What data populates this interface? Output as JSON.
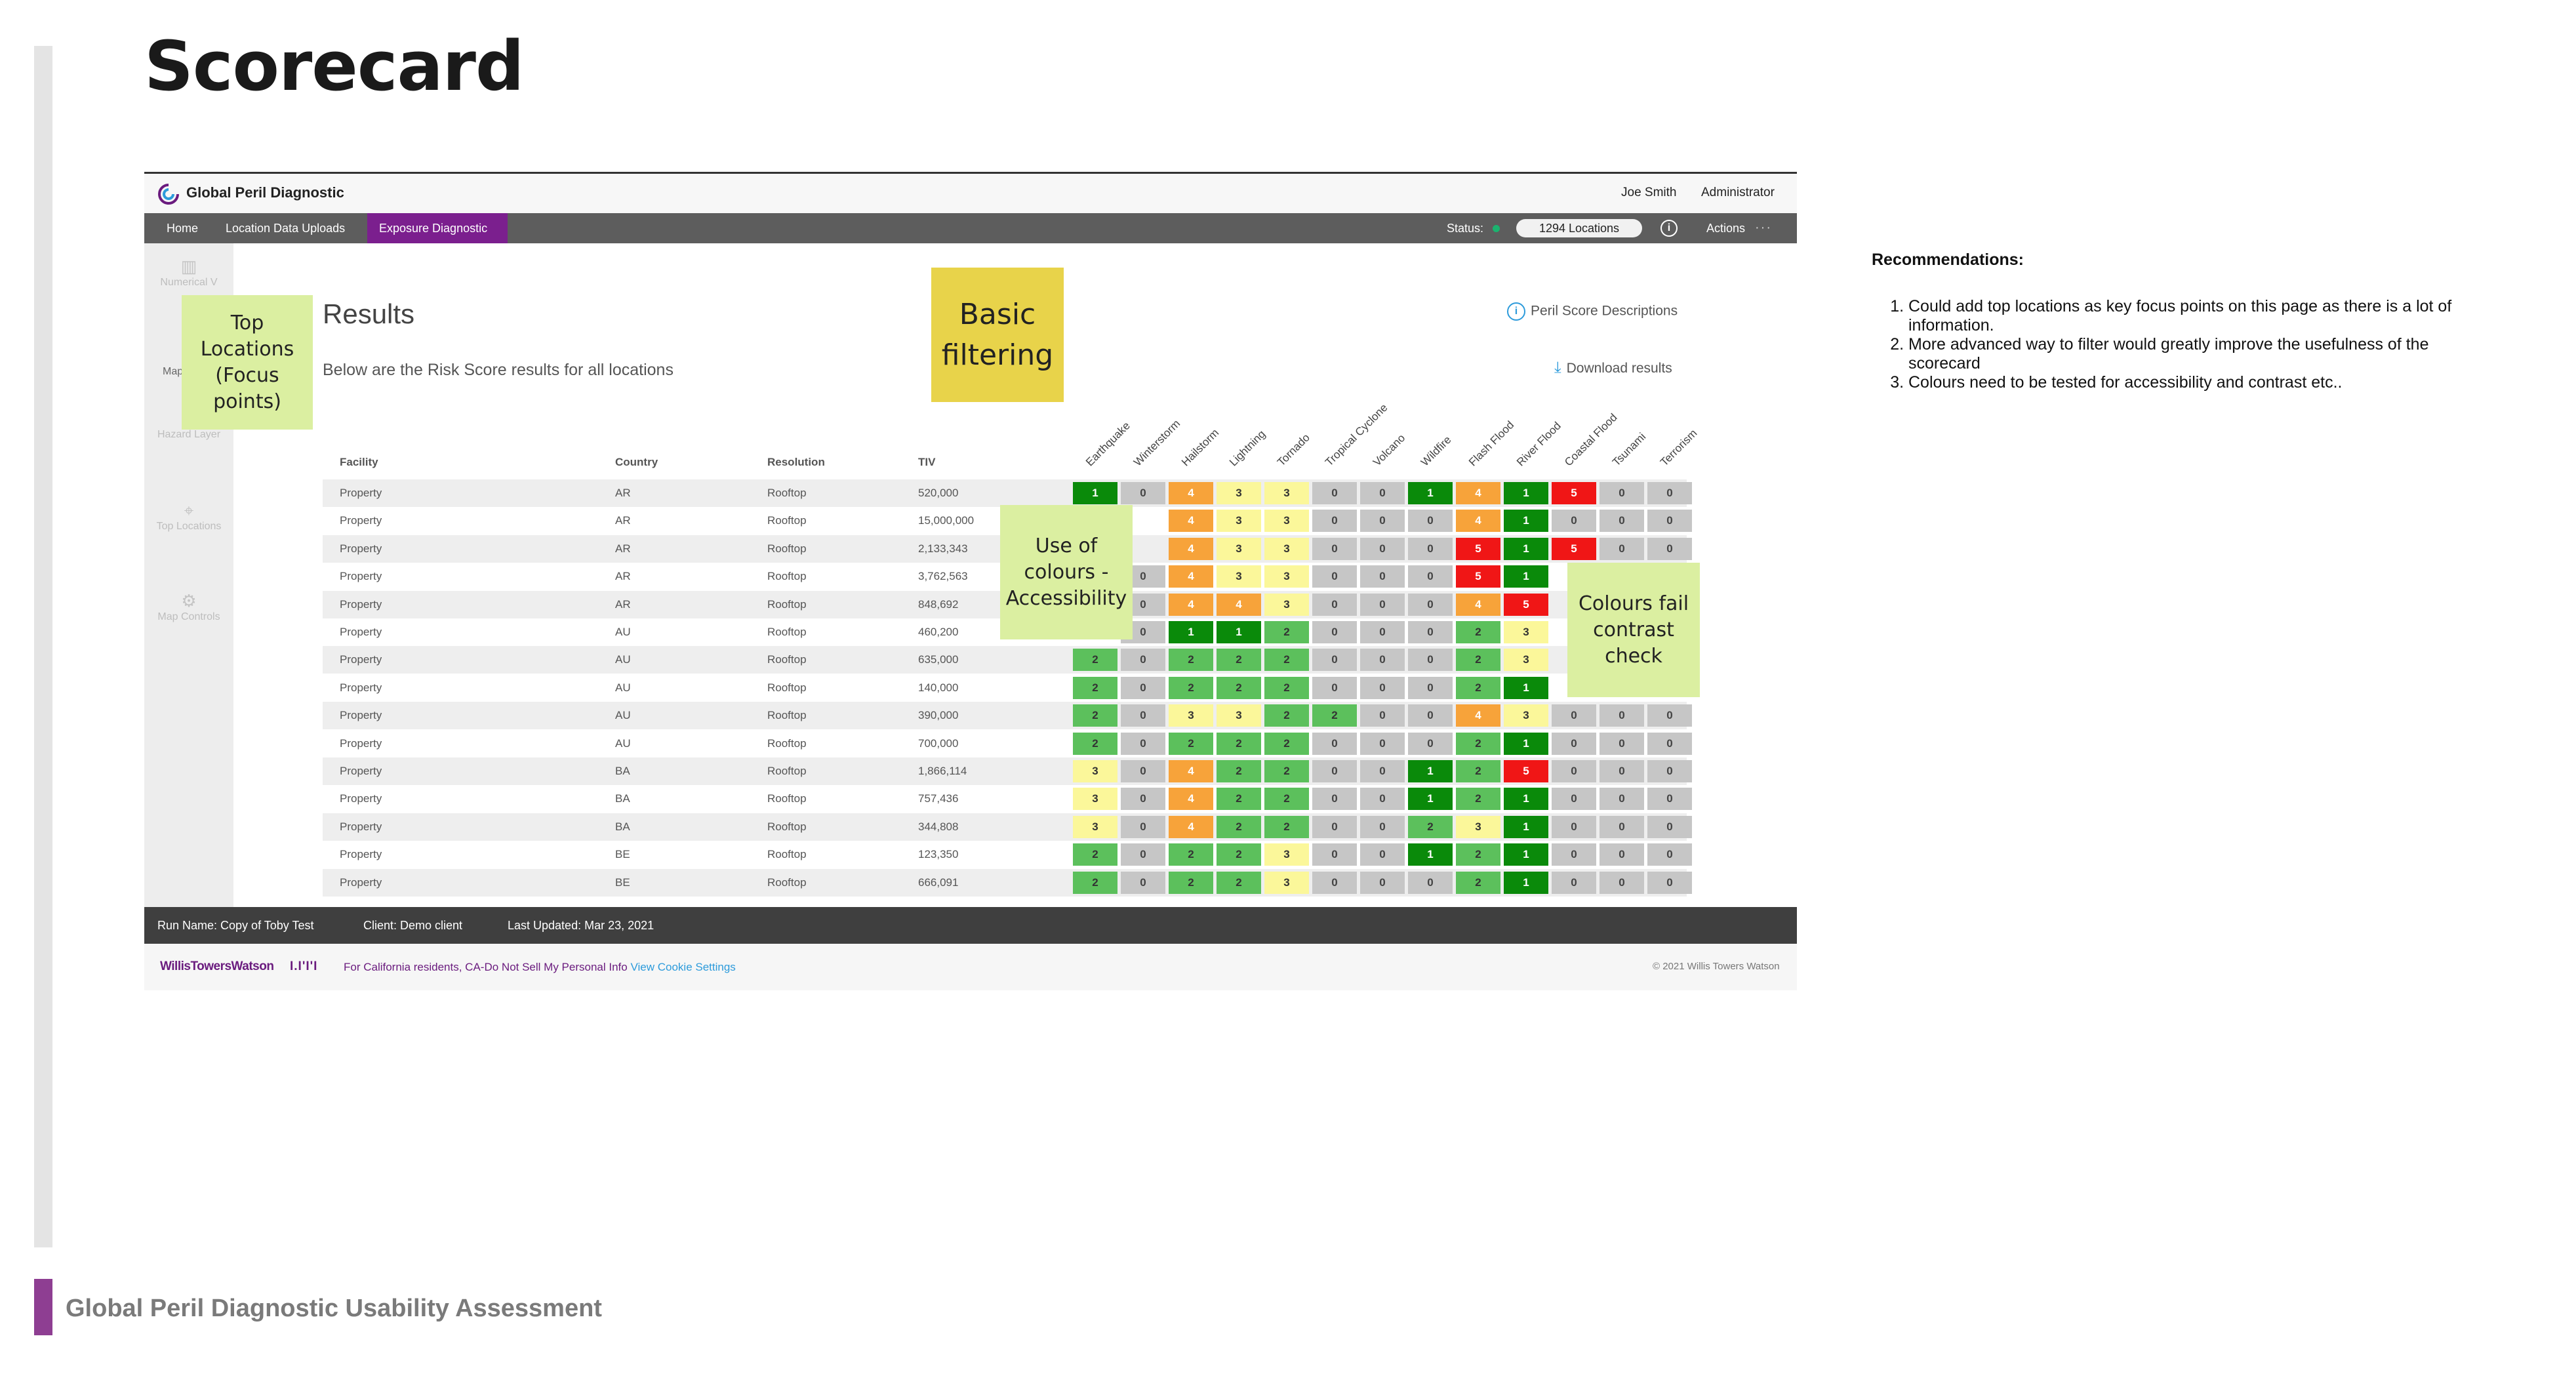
{
  "slide": {
    "title": "Scorecard",
    "footer_title": "Global Peril Diagnostic Usability Assessment"
  },
  "app": {
    "name": "Global Peril Diagnostic",
    "user_name": "Joe Smith",
    "user_role": "Administrator",
    "nav": [
      "Home",
      "Location Data Uploads",
      "Exposure Diagnostic"
    ],
    "active_nav": "Exposure Diagnostic",
    "status_label": "Status:",
    "locations": "1294 Locations",
    "actions_label": "Actions",
    "sidebar": [
      "Numerical V",
      "Map",
      "Hazard Layer",
      "Top Locations",
      "Map Controls"
    ]
  },
  "results": {
    "title": "Results",
    "subtitle": "Below are the Risk Score results for all locations",
    "peril_link": "Peril Score Descriptions",
    "download_link": "Download results",
    "columns": [
      "Facility",
      "Country",
      "Resolution",
      "TIV"
    ],
    "perils": [
      "Earthquake",
      "Winterstorm",
      "Hailstorm",
      "Lightning",
      "Tornado",
      "Tropical Cyclone",
      "Volcano",
      "Wildfire",
      "Flash Flood",
      "River Flood",
      "Coastal Flood",
      "Tsunami",
      "Terrorism"
    ],
    "rows": [
      {
        "facility": "Property",
        "country": "AR",
        "resolution": "Rooftop",
        "tiv": "520,000",
        "scores": [
          1,
          0,
          4,
          3,
          3,
          0,
          0,
          1,
          4,
          1,
          5,
          0,
          0
        ]
      },
      {
        "facility": "Property",
        "country": "AR",
        "resolution": "Rooftop",
        "tiv": "15,000,000",
        "scores": [
          null,
          null,
          4,
          3,
          3,
          0,
          0,
          0,
          4,
          1,
          0,
          0,
          0
        ]
      },
      {
        "facility": "Property",
        "country": "AR",
        "resolution": "Rooftop",
        "tiv": "2,133,343",
        "scores": [
          null,
          null,
          4,
          3,
          3,
          0,
          0,
          0,
          5,
          1,
          5,
          0,
          0
        ]
      },
      {
        "facility": "Property",
        "country": "AR",
        "resolution": "Rooftop",
        "tiv": "3,762,563",
        "scores": [
          null,
          0,
          4,
          3,
          3,
          0,
          0,
          0,
          5,
          1,
          null,
          null,
          null
        ]
      },
      {
        "facility": "Property",
        "country": "AR",
        "resolution": "Rooftop",
        "tiv": "848,692",
        "scores": [
          null,
          0,
          4,
          4,
          3,
          0,
          0,
          0,
          4,
          5,
          null,
          null,
          null
        ]
      },
      {
        "facility": "Property",
        "country": "AU",
        "resolution": "Rooftop",
        "tiv": "460,200",
        "scores": [
          null,
          0,
          1,
          1,
          2,
          0,
          0,
          0,
          2,
          3,
          null,
          null,
          null
        ]
      },
      {
        "facility": "Property",
        "country": "AU",
        "resolution": "Rooftop",
        "tiv": "635,000",
        "scores": [
          2,
          0,
          2,
          2,
          2,
          0,
          0,
          0,
          2,
          3,
          null,
          null,
          null
        ]
      },
      {
        "facility": "Property",
        "country": "AU",
        "resolution": "Rooftop",
        "tiv": "140,000",
        "scores": [
          2,
          0,
          2,
          2,
          2,
          0,
          0,
          0,
          2,
          1,
          null,
          null,
          null
        ]
      },
      {
        "facility": "Property",
        "country": "AU",
        "resolution": "Rooftop",
        "tiv": "390,000",
        "scores": [
          2,
          0,
          3,
          3,
          2,
          2,
          0,
          0,
          4,
          3,
          0,
          0,
          0
        ]
      },
      {
        "facility": "Property",
        "country": "AU",
        "resolution": "Rooftop",
        "tiv": "700,000",
        "scores": [
          2,
          0,
          2,
          2,
          2,
          0,
          0,
          0,
          2,
          1,
          0,
          0,
          0
        ]
      },
      {
        "facility": "Property",
        "country": "BA",
        "resolution": "Rooftop",
        "tiv": "1,866,114",
        "scores": [
          3,
          0,
          4,
          2,
          2,
          0,
          0,
          1,
          2,
          5,
          0,
          0,
          0
        ]
      },
      {
        "facility": "Property",
        "country": "BA",
        "resolution": "Rooftop",
        "tiv": "757,436",
        "scores": [
          3,
          0,
          4,
          2,
          2,
          0,
          0,
          1,
          2,
          1,
          0,
          0,
          0
        ]
      },
      {
        "facility": "Property",
        "country": "BA",
        "resolution": "Rooftop",
        "tiv": "344,808",
        "scores": [
          3,
          0,
          4,
          2,
          2,
          0,
          0,
          2,
          3,
          1,
          0,
          0,
          0
        ]
      },
      {
        "facility": "Property",
        "country": "BE",
        "resolution": "Rooftop",
        "tiv": "123,350",
        "scores": [
          2,
          0,
          2,
          2,
          3,
          0,
          0,
          1,
          2,
          1,
          0,
          0,
          0
        ]
      },
      {
        "facility": "Property",
        "country": "BE",
        "resolution": "Rooftop",
        "tiv": "666,091",
        "scores": [
          2,
          0,
          2,
          2,
          3,
          0,
          0,
          0,
          2,
          1,
          0,
          0,
          0
        ]
      }
    ]
  },
  "score_colors": {
    "0": "#c6c6c6",
    "1": "#0a8a0a",
    "2": "#5cc05c",
    "3": "#fbf79a",
    "4": "#f7a33a",
    "5": "#f01616"
  },
  "status_bar": {
    "run_name": "Run Name:  Copy of Toby Test",
    "client": "Client:  Demo client",
    "last_updated": "Last Updated:  Mar 23, 2021"
  },
  "footer": {
    "brand": "WillisTowersWatson",
    "brand_mark": "I.I'I'I",
    "ca_text": "For California residents, CA-Do Not Sell My Personal Info",
    "cookie_link": "View Cookie Settings",
    "copyright": "© 2021 Willis Towers Watson"
  },
  "annotations": {
    "top_locations": "Top Locations (Focus points)",
    "basic_filtering": "Basic filtering",
    "colours_accessibility": "Use of colours - Accessibility",
    "colours_contrast": "Colours fail contrast check"
  },
  "recommendations": {
    "title": "Recommendations:",
    "items": [
      "Could add top locations as key focus points on this page as there is a lot of information.",
      "More advanced way to filter would greatly improve the usefulness of the scorecard",
      "Colours need to be tested for accessibility and contrast etc.."
    ]
  }
}
